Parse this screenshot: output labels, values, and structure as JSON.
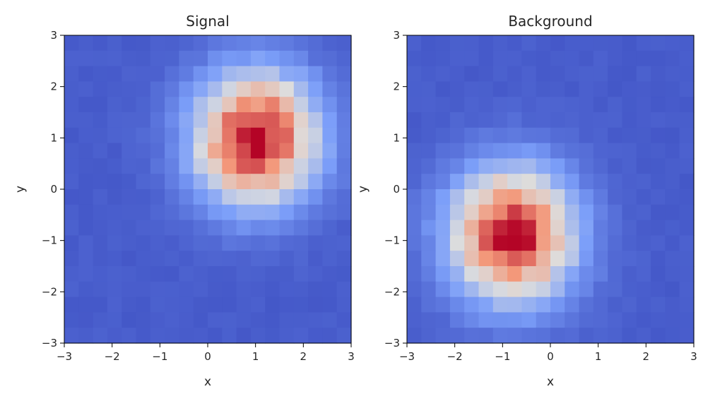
{
  "chart_data": [
    {
      "type": "heatmap",
      "title": "Signal",
      "xlabel": "x",
      "ylabel": "y",
      "xlim": [
        -3,
        3
      ],
      "ylim": [
        -3,
        3
      ],
      "xticks": [
        "−3",
        "−2",
        "−1",
        "0",
        "1",
        "2",
        "3"
      ],
      "yticks": [
        "−3",
        "−2",
        "−1",
        "0",
        "1",
        "2",
        "3"
      ],
      "bins": [
        20,
        20
      ],
      "colormap": "coolwarm",
      "peak_center": [
        1.0,
        1.0
      ],
      "spread": 0.9,
      "grid": false,
      "legend": "none"
    },
    {
      "type": "heatmap",
      "title": "Background",
      "xlabel": "x",
      "ylabel": "y",
      "xlim": [
        -3,
        3
      ],
      "ylim": [
        -3,
        3
      ],
      "xticks": [
        "−3",
        "−2",
        "−1",
        "0",
        "1",
        "2",
        "3"
      ],
      "yticks": [
        "−3",
        "−2",
        "−1",
        "0",
        "1",
        "2",
        "3"
      ],
      "bins": [
        20,
        20
      ],
      "colormap": "coolwarm",
      "peak_center": [
        -0.8,
        -0.9
      ],
      "spread": 0.9,
      "grid": false,
      "legend": "none"
    }
  ]
}
